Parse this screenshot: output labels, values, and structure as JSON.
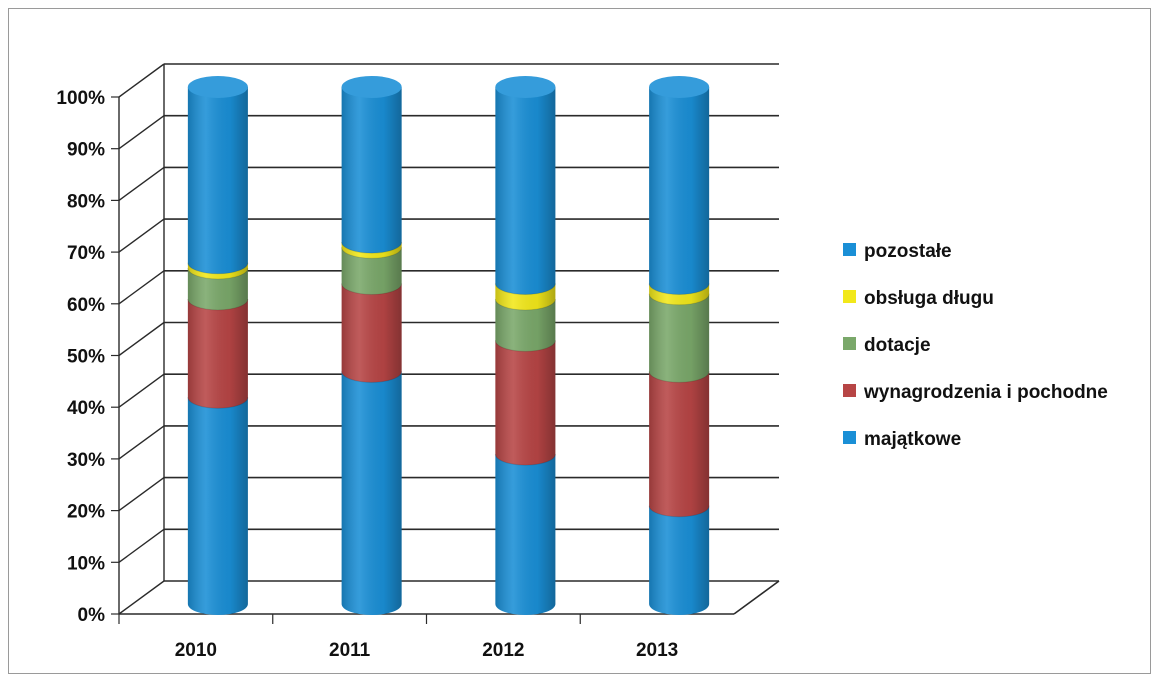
{
  "chart_data": {
    "type": "bar",
    "stacked": true,
    "percent_scale": true,
    "style": "3d-cylinder",
    "categories": [
      "2010",
      "2011",
      "2012",
      "2013"
    ],
    "series": [
      {
        "name": "majątkowe",
        "color": "#1a8fd6",
        "values": [
          40,
          45,
          29,
          19
        ]
      },
      {
        "name": "wynagrodzenia i pochodne",
        "color": "#b74545",
        "values": [
          19,
          17,
          22,
          26
        ]
      },
      {
        "name": "dotacje",
        "color": "#7aa86a",
        "values": [
          6,
          7,
          8,
          15
        ]
      },
      {
        "name": "obsługa długu",
        "color": "#f2e81a",
        "values": [
          1,
          1,
          3,
          2
        ]
      },
      {
        "name": "pozostałe",
        "color": "#1a8fd6",
        "values": [
          34,
          30,
          38,
          38
        ]
      }
    ],
    "yticks": [
      "0%",
      "10%",
      "20%",
      "30%",
      "40%",
      "50%",
      "60%",
      "70%",
      "80%",
      "90%",
      "100%"
    ],
    "ylim": [
      0,
      100
    ],
    "grid": true,
    "legend_position": "right",
    "legend_order": [
      "pozostałe",
      "obsługa długu",
      "dotacje",
      "wynagrodzenia i pochodne",
      "majątkowe"
    ]
  }
}
